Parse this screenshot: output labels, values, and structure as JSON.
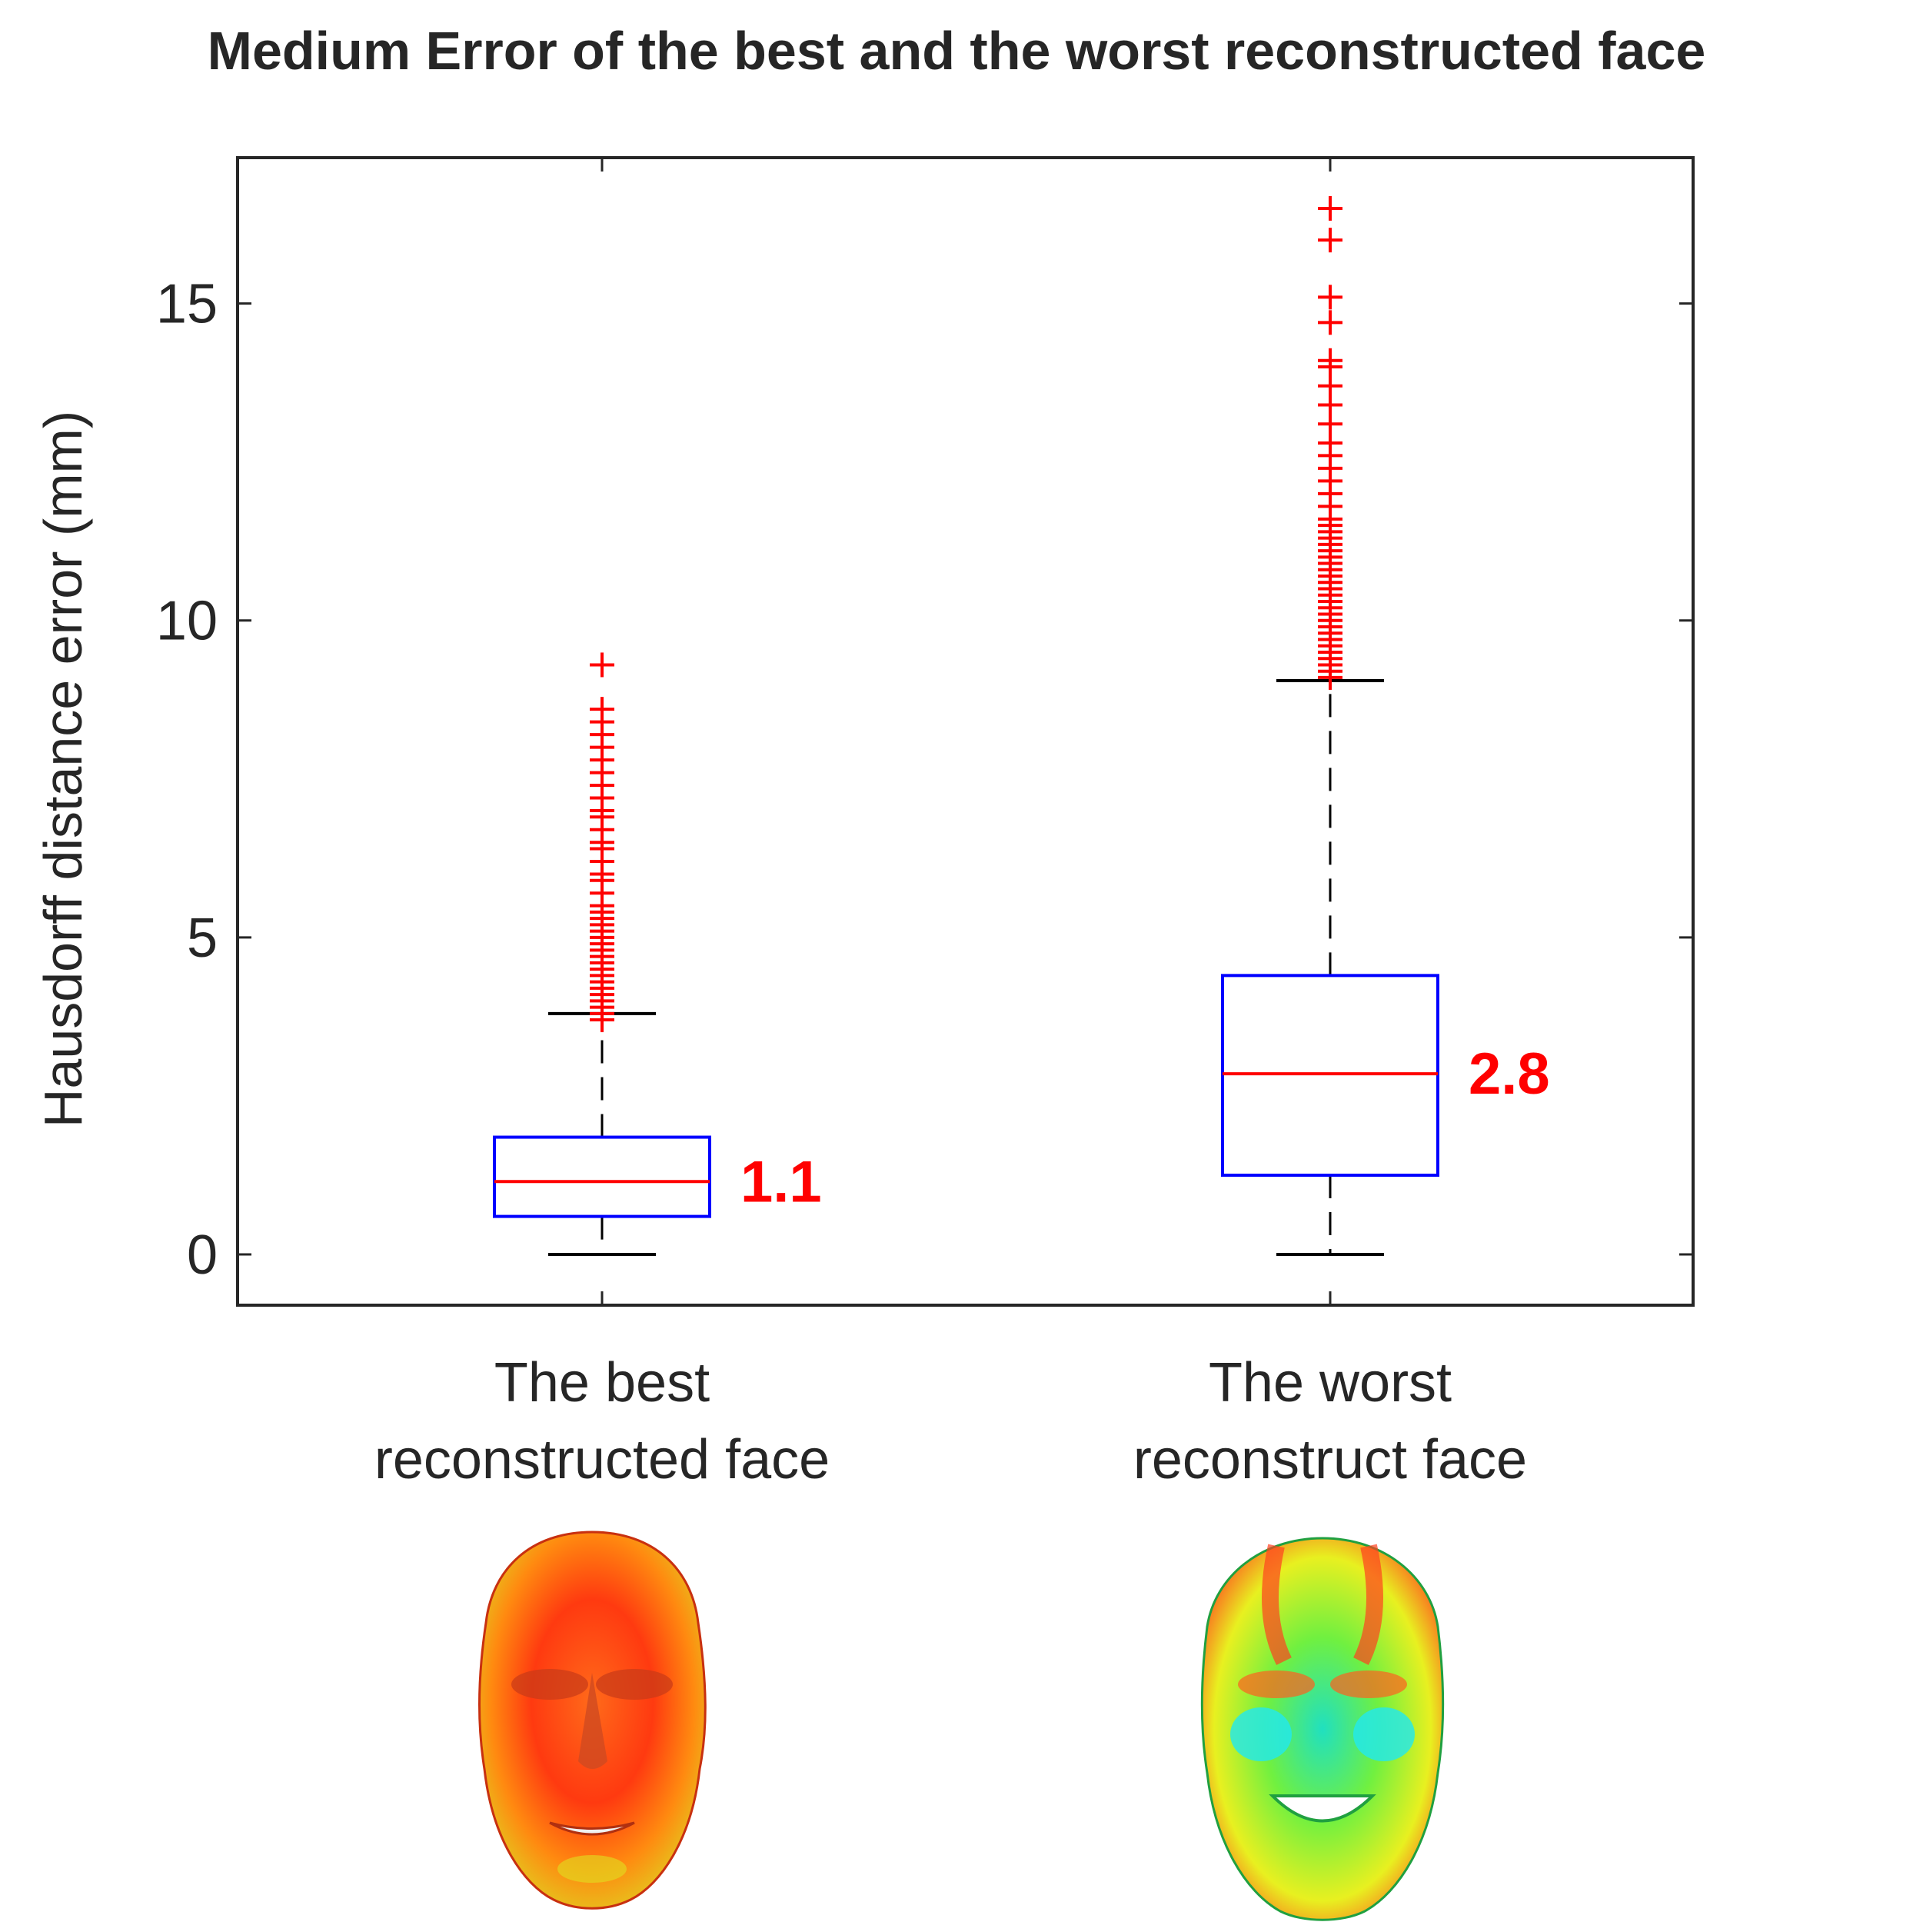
{
  "chart_data": {
    "type": "box",
    "title": "Medium Error of the best and the worst reconstructed face",
    "ylabel": "Hausdorff distance error (mm)",
    "xlabel": "",
    "ylim": [
      -0.8,
      17.3
    ],
    "yticks": [
      0,
      5,
      10,
      15
    ],
    "grid": false,
    "categories": [
      [
        "The best",
        "reconstructed face"
      ],
      [
        "The worst",
        "reconstruct face"
      ]
    ],
    "series": [
      {
        "category": "The best reconstructed face",
        "min": 0,
        "q1": 0.6,
        "median": 1.15,
        "q3": 1.85,
        "max": 3.8,
        "median_label": "1.1",
        "outliers": [
          3.7,
          3.8,
          3.9,
          4.0,
          4.1,
          4.2,
          4.3,
          4.4,
          4.5,
          4.6,
          4.7,
          4.8,
          4.9,
          5.0,
          5.1,
          5.2,
          5.3,
          5.4,
          5.5,
          5.7,
          5.9,
          6.0,
          6.2,
          6.4,
          6.5,
          6.7,
          6.9,
          7.0,
          7.2,
          7.4,
          7.6,
          7.8,
          8.0,
          8.2,
          8.4,
          8.6,
          9.3
        ]
      },
      {
        "category": "The worst reconstruct face",
        "min": 0,
        "q1": 1.25,
        "median": 2.85,
        "q3": 4.4,
        "max": 9.05,
        "median_label": "2.8",
        "outliers": [
          9.1,
          9.2,
          9.3,
          9.4,
          9.5,
          9.6,
          9.7,
          9.8,
          9.9,
          10.0,
          10.1,
          10.2,
          10.3,
          10.4,
          10.5,
          10.6,
          10.7,
          10.8,
          10.9,
          11.0,
          11.1,
          11.2,
          11.3,
          11.4,
          11.5,
          11.6,
          11.8,
          12.0,
          12.2,
          12.4,
          12.6,
          12.8,
          13.1,
          13.4,
          13.7,
          14.0,
          14.1,
          14.7,
          15.1,
          16.0,
          16.5
        ]
      }
    ],
    "colors": {
      "box": "#0000ff",
      "median": "#ff0000",
      "outlier": "#ff0000",
      "whisker": "#000000",
      "axes": "#262626"
    }
  },
  "images": [
    {
      "name": "best-face-heatmap",
      "tone": "mostly red-orange"
    },
    {
      "name": "worst-face-heatmap",
      "tone": "green-yellow with cyan and red"
    }
  ]
}
